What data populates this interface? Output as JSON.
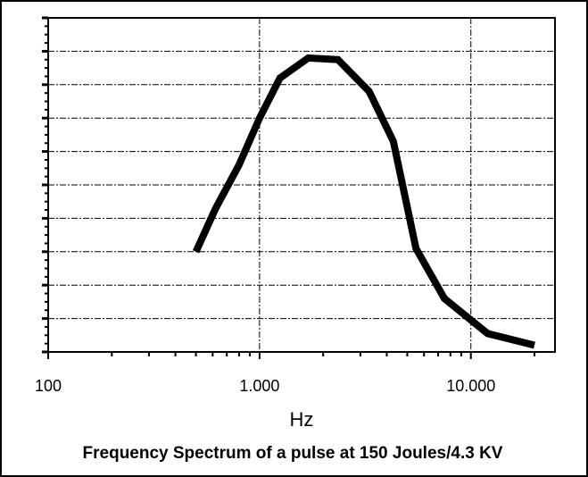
{
  "chart_data": {
    "type": "line",
    "caption": "Frequency Spectrum of a pulse at 150 Joules/4.3 KV",
    "xlabel": "Hz",
    "ylabel": "",
    "x_scale": "log",
    "xlim": [
      100,
      25000
    ],
    "ylim": [
      0,
      10
    ],
    "x_ticks": [
      {
        "value": 100,
        "label": "100"
      },
      {
        "value": 1000,
        "label": "1.000"
      },
      {
        "value": 10000,
        "label": "10.000"
      }
    ],
    "grid": true,
    "series": [
      {
        "color": "#000000",
        "points": [
          {
            "x": 500,
            "y": 3.0
          },
          {
            "x": 620,
            "y": 4.3
          },
          {
            "x": 800,
            "y": 5.6
          },
          {
            "x": 1000,
            "y": 7.0
          },
          {
            "x": 1250,
            "y": 8.2
          },
          {
            "x": 1700,
            "y": 8.8
          },
          {
            "x": 2350,
            "y": 8.75
          },
          {
            "x": 3300,
            "y": 7.8
          },
          {
            "x": 4300,
            "y": 6.3
          },
          {
            "x": 5500,
            "y": 3.1
          },
          {
            "x": 7500,
            "y": 1.6
          },
          {
            "x": 12000,
            "y": 0.55
          },
          {
            "x": 20000,
            "y": 0.2
          }
        ]
      }
    ]
  }
}
